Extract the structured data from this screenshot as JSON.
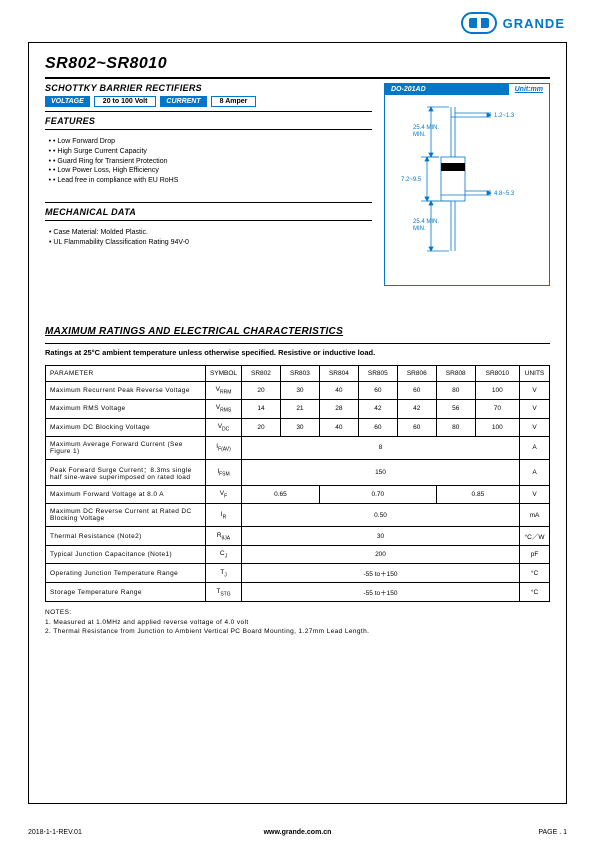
{
  "brand": {
    "name": "GRANDE"
  },
  "part_number": "SR802~SR8010",
  "subtitle": "SCHOTTKY BARRIER RECTIFIERS",
  "voltage": {
    "label": "VOLTAGE",
    "value": "20 to 100 Volt"
  },
  "current": {
    "label": "CURRENT",
    "value": "8 Amper"
  },
  "package": {
    "name": "DO-201AD",
    "unit_label": "Unit:mm",
    "dims": {
      "lead_dia": "1.2~1.3",
      "lead_top": "25.4 MIN.",
      "body_h": "7.2~9.5",
      "body_w": "4.8~5.3",
      "lead_bot": "25.4 MIN."
    },
    "colors": {
      "outline": "#0077c8",
      "dim": "#0077c8"
    }
  },
  "features": {
    "heading": "FEATURES",
    "items": [
      "Low Forward Drop",
      "High Surge Current Capacity",
      "Guard Ring for Transient Protection",
      "Low Power Loss, High Efficiency",
      "Lead free in compliance with EU RoHS"
    ]
  },
  "mechanical": {
    "heading": "MECHANICAL DATA",
    "items": [
      "Case Material: Molded Plastic.",
      "UL Flammability Classification Rating 94V-0"
    ]
  },
  "ratings": {
    "title": "MAXIMUM RATINGS AND ELECTRICAL CHARACTERISTICS",
    "subtitle": "Ratings at 25°C ambient temperature unless otherwise specified.  Resistive or inductive load.",
    "header": {
      "param": "PARAMETER",
      "symbol": "SYMBOL",
      "parts": [
        "SR802",
        "SR803",
        "SR804",
        "SR805",
        "SR806",
        "SR808",
        "SR8010"
      ],
      "units": "UNITS"
    },
    "rows": [
      {
        "param": "Maximum Recurrent Peak Reverse Voltage",
        "sym": "V",
        "sub": "RRM",
        "vals": [
          "20",
          "30",
          "40",
          "60",
          "60",
          "80",
          "100"
        ],
        "unit": "V"
      },
      {
        "param": "Maximum RMS Voltage",
        "sym": "V",
        "sub": "RMS",
        "vals": [
          "14",
          "21",
          "28",
          "42",
          "42",
          "56",
          "70"
        ],
        "unit": "V"
      },
      {
        "param": "Maximum DC Blocking Voltage",
        "sym": "V",
        "sub": "DC",
        "vals": [
          "20",
          "30",
          "40",
          "60",
          "60",
          "80",
          "100"
        ],
        "unit": "V"
      },
      {
        "param": "Maximum Average Forward Current (See Figure 1)",
        "sym": "I",
        "sub": "F(AV)",
        "span": "8",
        "unit": "A"
      },
      {
        "param": "Peak Forward Surge Current：8.3ms single half sine-wave superimposed on rated load",
        "sym": "I",
        "sub": "FSM",
        "span": "150",
        "unit": "A"
      },
      {
        "param": "Maximum Forward Voltage at 8.0 A",
        "sym": "V",
        "sub": "F",
        "groups": [
          {
            "span": 2,
            "val": "0.65"
          },
          {
            "span": 3,
            "val": "0.70"
          },
          {
            "span": 2,
            "val": "0.85"
          }
        ],
        "unit": "V"
      },
      {
        "param": "Maximum DC Reverse Current at Rated DC Blocking Voltage",
        "sym": "I",
        "sub": "R",
        "span": "0.50",
        "unit": "mA"
      },
      {
        "param": "Thermal Resistance (Note2)",
        "sym": "R",
        "sub": "θJA",
        "span": "30",
        "unit": "°C／W"
      },
      {
        "param": "Typical Junction Capacitance (Note1)",
        "sym": "C",
        "sub": "J",
        "span": "200",
        "unit": "pF"
      },
      {
        "param": "Operating Junction Temperature Range",
        "sym": "T",
        "sub": "J",
        "span": "-55 to＋150",
        "unit": "°C"
      },
      {
        "param": "Storage Temperature Range",
        "sym": "T",
        "sub": "STG",
        "span": "-55 to＋150",
        "unit": "°C"
      }
    ]
  },
  "notes": {
    "heading": "NOTES:",
    "items": [
      "1. Measured at 1.0MHz and applied reverse voltage of 4.0 volt",
      "2. Thermal Resistance from Junction to Ambient Vertical PC Board Mounting, 1.27mm Lead Length."
    ]
  },
  "footer": {
    "left": "2018-1-1-REV.01",
    "center": "www.grande.com.cn",
    "right": "PAGE . 1"
  },
  "colors": {
    "brand": "#0077c8",
    "text": "#000000",
    "bg": "#ffffff"
  }
}
